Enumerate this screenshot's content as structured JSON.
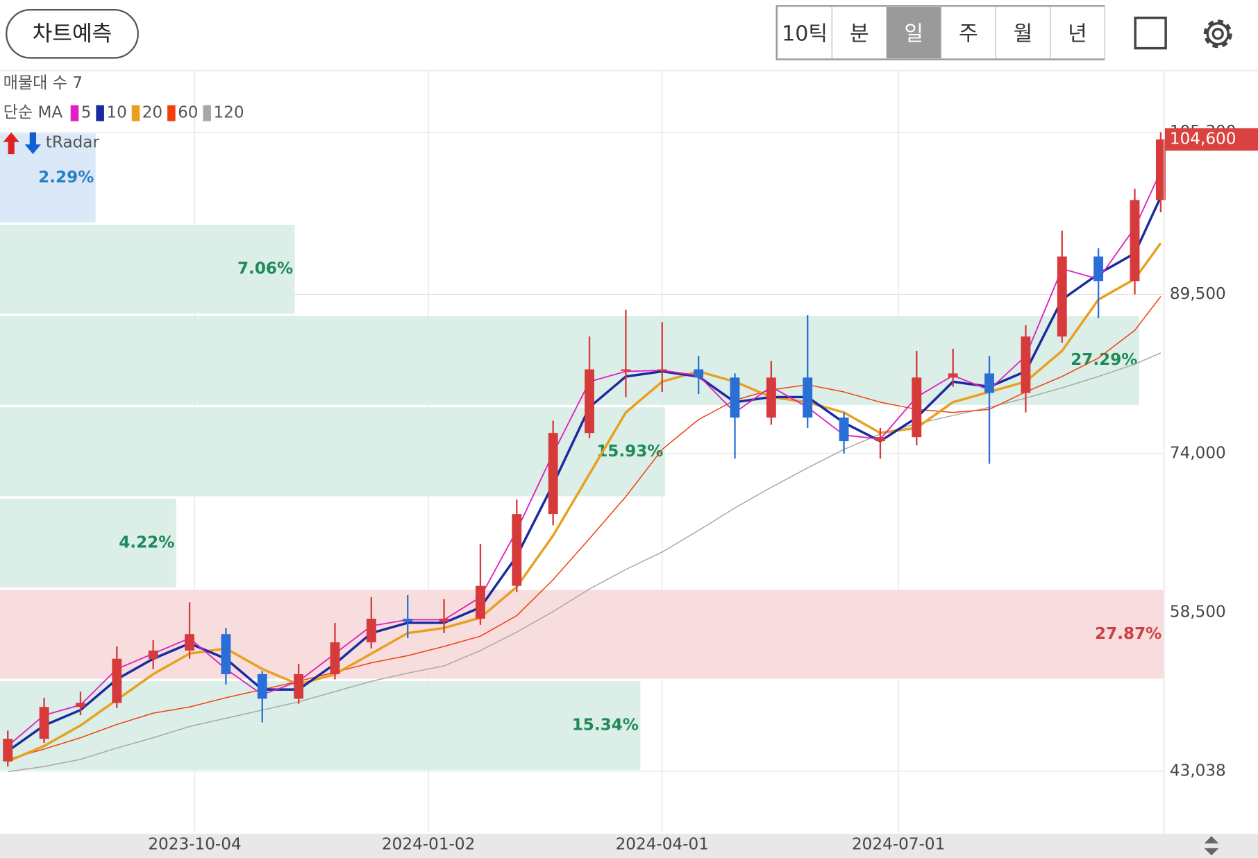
{
  "header": {
    "predict_button": "차트예측",
    "periods": [
      "10틱",
      "분",
      "일",
      "주",
      "월",
      "년"
    ],
    "selected_period": 2
  },
  "chart_data": {
    "type": "candlestick",
    "legend": {
      "profile_count": "매물대 수 7",
      "ma_label": "단순 MA",
      "radar": "tRadar"
    },
    "x": [
      "2023-07-24",
      "2023-08-07",
      "2023-08-21",
      "2023-09-04",
      "2023-09-18",
      "2023-10-02",
      "2023-10-16",
      "2023-10-30",
      "2023-11-13",
      "2023-11-27",
      "2023-12-11",
      "2023-12-25",
      "2024-01-08",
      "2024-01-22",
      "2024-02-05",
      "2024-02-19",
      "2024-03-04",
      "2024-03-18",
      "2024-04-01",
      "2024-04-15",
      "2024-04-29",
      "2024-05-13",
      "2024-05-27",
      "2024-06-10",
      "2024-06-24",
      "2024-07-08",
      "2024-07-22",
      "2024-08-05",
      "2024-08-19",
      "2024-09-02",
      "2024-09-16",
      "2024-09-30",
      "2024-10-10"
    ],
    "open": [
      44000,
      46200,
      49300,
      49700,
      54000,
      54800,
      56400,
      52500,
      50100,
      52500,
      55600,
      57900,
      57600,
      57900,
      61100,
      68100,
      76000,
      82200,
      82200,
      82200,
      81400,
      77500,
      81400,
      77500,
      75200,
      75600,
      81400,
      81800,
      79900,
      85400,
      93200,
      90800,
      98700
    ],
    "high": [
      47000,
      50200,
      50800,
      55200,
      55800,
      59500,
      57000,
      52800,
      53500,
      57500,
      60000,
      60200,
      59800,
      65200,
      69500,
      77200,
      85400,
      88000,
      86800,
      83500,
      81800,
      83000,
      87500,
      78000,
      76500,
      84000,
      84200,
      83500,
      86500,
      95700,
      94000,
      99800,
      105300
    ],
    "low": [
      43500,
      45800,
      48500,
      49200,
      53000,
      54000,
      51500,
      47800,
      49600,
      52000,
      55000,
      56000,
      56500,
      57300,
      60500,
      67000,
      75500,
      79500,
      80000,
      79800,
      73500,
      76800,
      76500,
      74000,
      73500,
      74800,
      80500,
      73000,
      78000,
      84800,
      87200,
      89500,
      97500
    ],
    "close": [
      46200,
      49300,
      49700,
      54000,
      54800,
      56400,
      52500,
      50100,
      52500,
      55600,
      57900,
      57600,
      57900,
      61100,
      68100,
      76000,
      82200,
      82200,
      82200,
      81400,
      77500,
      81400,
      77500,
      75200,
      75600,
      81400,
      81800,
      79900,
      85400,
      93200,
      90800,
      98700,
      104600
    ],
    "up_color": "#d63a3a",
    "down_color": "#2a6fd6",
    "series": [
      {
        "name": "5",
        "color": "#e020c0",
        "width": 1.6,
        "values": [
          45500,
          48500,
          49500,
          53000,
          54500,
          56000,
          53000,
          50500,
          51800,
          54500,
          57200,
          57800,
          57800,
          60000,
          66500,
          74000,
          81000,
          82000,
          82100,
          81600,
          78000,
          80500,
          78500,
          75800,
          75400,
          79500,
          81600,
          80200,
          83500,
          92000,
          91000,
          96000,
          101500
        ]
      },
      {
        "name": "10",
        "color": "#1a2aa0",
        "width": 3,
        "values": [
          45000,
          47500,
          49000,
          52000,
          54000,
          55500,
          54000,
          51000,
          51000,
          53500,
          56500,
          57500,
          57500,
          59000,
          64000,
          71000,
          78500,
          81500,
          82000,
          81500,
          79000,
          79500,
          79500,
          77000,
          75200,
          77500,
          81000,
          80500,
          82000,
          89000,
          91500,
          93500,
          99000
        ]
      },
      {
        "name": "20",
        "color": "#e8a020",
        "width": 3,
        "values": [
          44000,
          45500,
          47500,
          50000,
          52500,
          54500,
          55000,
          53000,
          51500,
          52500,
          54500,
          56500,
          57000,
          58000,
          61000,
          66000,
          72000,
          78000,
          81000,
          82000,
          81000,
          79500,
          79000,
          78000,
          76000,
          76500,
          79000,
          80000,
          81000,
          84000,
          89000,
          91000,
          94500
        ]
      },
      {
        "name": "60",
        "color": "#f04010",
        "width": 1.3,
        "values": [
          44200,
          45200,
          46300,
          47600,
          48700,
          49300,
          50200,
          51000,
          51800,
          52700,
          53600,
          54300,
          55200,
          56200,
          58200,
          61700,
          65700,
          69800,
          74400,
          77300,
          79200,
          80200,
          80700,
          80000,
          79000,
          78300,
          78000,
          78300,
          80000,
          81500,
          83300,
          86000,
          89300
        ]
      },
      {
        "name": "120",
        "color": "#a8a8a8",
        "width": 1.3,
        "values": [
          43000,
          43500,
          44200,
          45300,
          46300,
          47400,
          48200,
          49000,
          49800,
          50800,
          51800,
          52600,
          53300,
          54800,
          56600,
          58600,
          60800,
          62700,
          64400,
          66500,
          68700,
          70700,
          72600,
          74400,
          75900,
          76900,
          77700,
          78500,
          79400,
          80400,
          81500,
          82700,
          83800
        ]
      }
    ],
    "volume_profile": [
      {
        "low": 43038,
        "high": 51933,
        "percent": 15.34,
        "label": "15.34%",
        "color": "#d7ece4",
        "text_color": "#1e8a5a"
      },
      {
        "low": 51933,
        "high": 60827,
        "percent": 27.87,
        "label": "27.87%",
        "color": "#f6d9d9",
        "text_color": "#d04040"
      },
      {
        "low": 60827,
        "high": 69722,
        "percent": 4.22,
        "label": "4.22%",
        "color": "#d7ece4",
        "text_color": "#1e8a5a"
      },
      {
        "low": 69722,
        "high": 78616,
        "percent": 15.93,
        "label": "15.93%",
        "color": "#d7ece4",
        "text_color": "#1e8a5a"
      },
      {
        "low": 78616,
        "high": 87511,
        "percent": 27.29,
        "label": "27.29%",
        "color": "#d7ece4",
        "text_color": "#1e8a5a"
      },
      {
        "low": 87511,
        "high": 96405,
        "percent": 7.06,
        "label": "7.06%",
        "color": "#d7ece4",
        "text_color": "#1e8a5a"
      },
      {
        "low": 96405,
        "high": 105300,
        "percent": 2.29,
        "label": "2.29%",
        "color": "#d6e6f7",
        "text_color": "#2a7fc0"
      }
    ],
    "ylim": [
      37100,
      111300
    ],
    "yticks": [
      {
        "value": 43038,
        "label": "43,038"
      },
      {
        "value": 58500,
        "label": "58,500"
      },
      {
        "value": 74000,
        "label": "74,000"
      },
      {
        "value": 89500,
        "label": "89,500"
      },
      {
        "value": 105300,
        "label": "105,300"
      }
    ],
    "xlim": [
      "2023-07-21",
      "2024-10-11"
    ],
    "xticks": [
      "2023-10-04",
      "2024-01-02",
      "2024-04-01",
      "2024-07-01"
    ],
    "last_price": {
      "value": 104600,
      "label": "104,600"
    },
    "grid": true
  }
}
